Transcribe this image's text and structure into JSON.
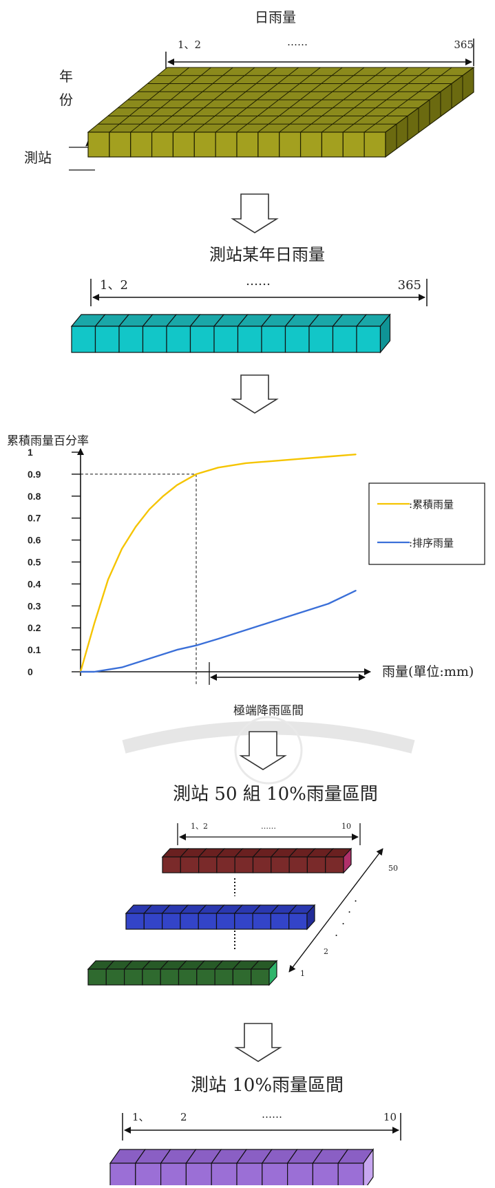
{
  "panel1": {
    "title": "日雨量",
    "range_start": "1、2",
    "range_dots": "……",
    "range_end": "365",
    "label_year": "年\n份",
    "label_station": "測站",
    "colors": {
      "top": "#8b8a1c",
      "front": "#a3a01f",
      "side": "#6b6a10",
      "line": "#1f1f00"
    }
  },
  "panel2": {
    "title": "測站某年日雨量",
    "range_start": "1、2",
    "range_dots": "……",
    "range_end": "365",
    "colors": {
      "front": "#12c6c8",
      "top": "#1aa7a8",
      "side": "#0f9496"
    }
  },
  "chart_data": {
    "type": "line",
    "ylabel": "累積雨量百分率",
    "xlabel": "雨量(單位:mm)",
    "ytick_labels": [
      "0",
      "0.1",
      "0.2",
      "0.3",
      "0.4",
      "0.5",
      "0.6",
      "0.7",
      "0.8",
      "0.9",
      "1"
    ],
    "ylim": [
      0,
      1
    ],
    "xlim": [
      0,
      100
    ],
    "grid": false,
    "legend_position": "right",
    "threshold": {
      "x": 42,
      "y": 0.9,
      "label": "極端降雨區間"
    },
    "series": [
      {
        "name": ":累積雨量",
        "color": "#f5c400",
        "x": [
          0,
          5,
          10,
          15,
          20,
          25,
          30,
          35,
          42,
          50,
          60,
          70,
          80,
          90,
          100
        ],
        "values": [
          0,
          0.22,
          0.42,
          0.56,
          0.66,
          0.74,
          0.8,
          0.85,
          0.9,
          0.93,
          0.95,
          0.96,
          0.97,
          0.98,
          0.99
        ]
      },
      {
        "name": ":排序雨量",
        "color": "#3a6fd8",
        "x": [
          0,
          5,
          10,
          15,
          20,
          25,
          30,
          35,
          42,
          50,
          60,
          70,
          80,
          90,
          100
        ],
        "values": [
          0,
          0.0,
          0.01,
          0.02,
          0.04,
          0.06,
          0.08,
          0.1,
          0.12,
          0.15,
          0.19,
          0.23,
          0.27,
          0.31,
          0.37
        ]
      }
    ]
  },
  "panel4": {
    "title": "測站 50 組 10%雨量區間",
    "range_start": "1、2",
    "range_dots": "……",
    "range_end": "10",
    "label_50": "50",
    "label_2": "2",
    "label_1": "1",
    "colors": {
      "top_row": "#7a2a2a",
      "mid_row": "#3344c8",
      "bottom_row": "#2f6a2f",
      "top_side": "#b0306a",
      "bottom_side": "#2fb56b"
    }
  },
  "panel5": {
    "title": "測站 10%雨量區間",
    "range_start": "1、",
    "range_mid": "2",
    "range_dots": "……",
    "range_end": "10",
    "colors": {
      "front": "#9b6fd6",
      "top": "#8a5fc4",
      "side": "#c7a6f0"
    }
  },
  "arrows": {
    "color": "#333333"
  }
}
